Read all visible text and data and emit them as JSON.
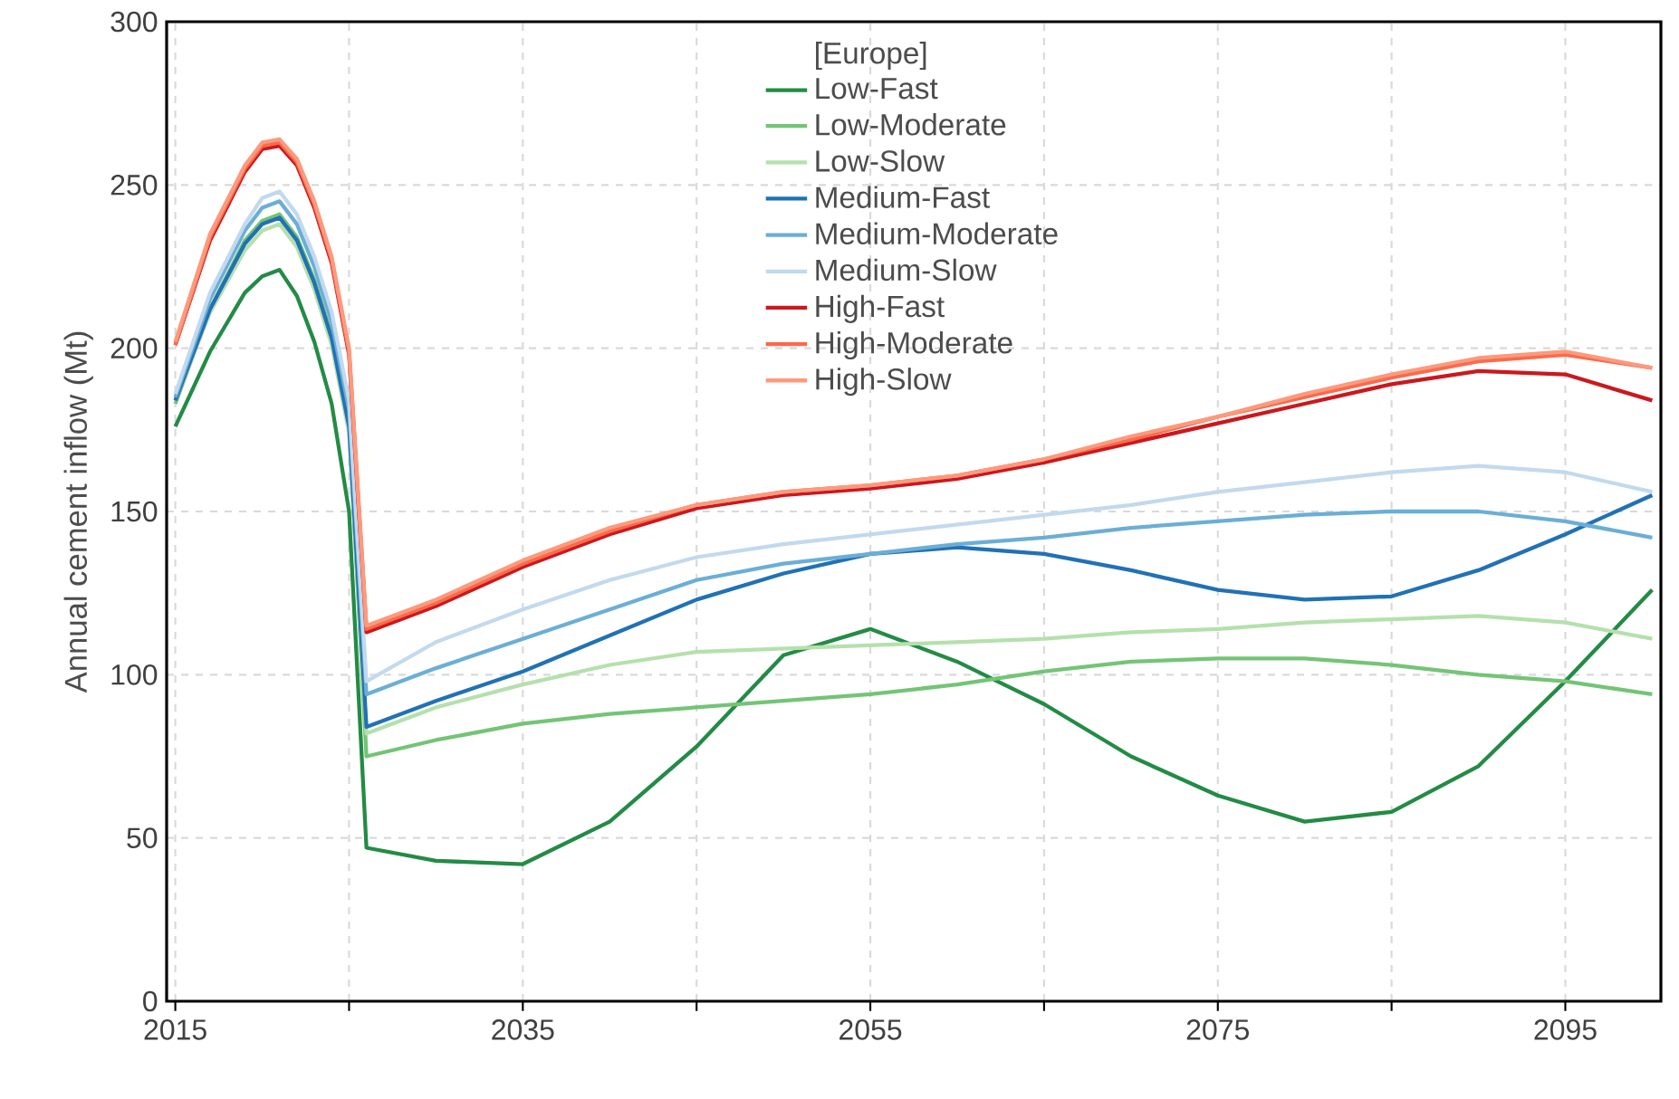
{
  "chart_data": {
    "type": "line",
    "ylabel": "Annual cement inflow (Mt)",
    "legend_title": "[Europe]",
    "x": [
      2015,
      2017,
      2019,
      2020,
      2021,
      2022,
      2023,
      2024,
      2025,
      2026,
      2030,
      2035,
      2040,
      2045,
      2050,
      2055,
      2060,
      2065,
      2070,
      2075,
      2080,
      2085,
      2090,
      2095,
      2100
    ],
    "xlim": [
      2014.5,
      2100.5
    ],
    "xticks": [
      2015,
      {
        "value": 2025,
        "label": null
      },
      2035,
      {
        "value": 2045,
        "label": null
      },
      2055,
      {
        "value": 2065,
        "label": null
      },
      2075,
      {
        "value": 2085,
        "label": null
      },
      2095
    ],
    "ylim": [
      0,
      300
    ],
    "yticks": [
      0,
      50,
      100,
      150,
      200,
      250,
      300
    ],
    "grid": true,
    "legend": "top",
    "line_style": "solid",
    "series": [
      {
        "name": "Low-Fast",
        "color": "#238b45",
        "values": [
          176,
          199,
          217,
          222,
          224,
          216,
          202,
          183,
          150,
          47,
          43,
          42,
          55,
          78,
          106,
          114,
          104,
          91,
          75,
          63,
          55,
          58,
          72,
          98,
          126
        ]
      },
      {
        "name": "Low-Moderate",
        "color": "#74c476",
        "values": [
          183,
          212,
          233,
          239,
          241,
          234,
          221,
          204,
          177,
          75,
          80,
          85,
          88,
          90,
          92,
          94,
          97,
          101,
          104,
          105,
          105,
          103,
          100,
          98,
          94
        ]
      },
      {
        "name": "Low-Slow",
        "color": "#b5e0ad",
        "values": [
          184,
          211,
          230,
          236,
          238,
          231,
          218,
          201,
          174,
          82,
          90,
          97,
          103,
          107,
          108,
          109,
          110,
          111,
          113,
          114,
          116,
          117,
          118,
          116,
          111
        ]
      },
      {
        "name": "Medium-Fast",
        "color": "#2171b5",
        "values": [
          184,
          212,
          232,
          238,
          240,
          233,
          220,
          203,
          176,
          84,
          92,
          101,
          112,
          123,
          131,
          137,
          139,
          137,
          132,
          126,
          123,
          124,
          132,
          143,
          155
        ]
      },
      {
        "name": "Medium-Moderate",
        "color": "#6baed6",
        "values": [
          185,
          215,
          236,
          243,
          245,
          238,
          225,
          208,
          181,
          94,
          102,
          111,
          120,
          129,
          134,
          137,
          140,
          142,
          145,
          147,
          149,
          150,
          150,
          147,
          142
        ]
      },
      {
        "name": "Medium-Slow",
        "color": "#c2d9ee",
        "values": [
          186,
          217,
          238,
          246,
          248,
          241,
          228,
          211,
          184,
          98,
          110,
          120,
          129,
          136,
          140,
          143,
          146,
          149,
          152,
          156,
          159,
          162,
          164,
          162,
          156
        ]
      },
      {
        "name": "High-Fast",
        "color": "#cb181d",
        "values": [
          201,
          233,
          254,
          261,
          262,
          256,
          243,
          226,
          198,
          113,
          121,
          133,
          143,
          151,
          155,
          157,
          160,
          165,
          171,
          177,
          183,
          189,
          193,
          192,
          184
        ]
      },
      {
        "name": "High-Moderate",
        "color": "#fb6a4a",
        "values": [
          201,
          234,
          255,
          262,
          263,
          257,
          244,
          227,
          199,
          114,
          122,
          134,
          144,
          152,
          156,
          158,
          161,
          166,
          172,
          179,
          185,
          191,
          196,
          198,
          194
        ]
      },
      {
        "name": "High-Slow",
        "color": "#fc9a7e",
        "values": [
          202,
          235,
          256,
          263,
          264,
          258,
          245,
          228,
          200,
          115,
          123,
          135,
          145,
          152,
          156,
          158,
          161,
          166,
          173,
          179,
          186,
          192,
          197,
          199,
          194
        ]
      }
    ]
  }
}
